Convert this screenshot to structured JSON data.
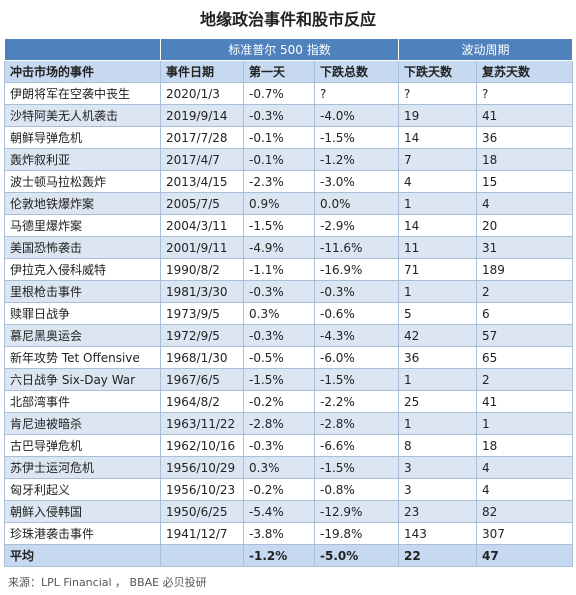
{
  "header": {
    "title": "地缘政治事件和股市反应"
  },
  "table": {
    "groups": [
      "标准普尔 500 指数",
      "波动周期"
    ],
    "columns": [
      "冲击市场的事件",
      "事件日期",
      "第一天",
      "下跌总数",
      "下跌天数",
      "复苏天数"
    ],
    "rows": [
      [
        "伊朗将军在空袭中丧生",
        "2020/1/3",
        "-0.7%",
        "?",
        "?",
        "?"
      ],
      [
        "沙特阿美无人机袭击",
        "2019/9/14",
        "-0.3%",
        "-4.0%",
        "19",
        "41"
      ],
      [
        "朝鲜导弹危机",
        "2017/7/28",
        "-0.1%",
        "-1.5%",
        "14",
        "36"
      ],
      [
        "轰炸叙利亚",
        "2017/4/7",
        "-0.1%",
        "-1.2%",
        "7",
        "18"
      ],
      [
        "波士顿马拉松轰炸",
        "2013/4/15",
        "-2.3%",
        "-3.0%",
        "4",
        "15"
      ],
      [
        "伦敦地铁爆炸案",
        "2005/7/5",
        "0.9%",
        "0.0%",
        "1",
        "4"
      ],
      [
        "马德里爆炸案",
        "2004/3/11",
        "-1.5%",
        "-2.9%",
        "14",
        "20"
      ],
      [
        "美国恐怖袭击",
        "2001/9/11",
        "-4.9%",
        "-11.6%",
        "11",
        "31"
      ],
      [
        "伊拉克入侵科威特",
        "1990/8/2",
        "-1.1%",
        "-16.9%",
        "71",
        "189"
      ],
      [
        "里根枪击事件",
        "1981/3/30",
        "-0.3%",
        "-0.3%",
        "1",
        "2"
      ],
      [
        "赎罪日战争",
        "1973/9/5",
        "0.3%",
        "-0.6%",
        "5",
        "6"
      ],
      [
        "慕尼黑奥运会",
        "1972/9/5",
        "-0.3%",
        "-4.3%",
        "42",
        "57"
      ],
      [
        "新年攻势 Tet Offensive",
        "1968/1/30",
        "-0.5%",
        "-6.0%",
        "36",
        "65"
      ],
      [
        "六日战争 Six-Day War",
        "1967/6/5",
        "-1.5%",
        "-1.5%",
        "1",
        "2"
      ],
      [
        "北部湾事件",
        "1964/8/2",
        "-0.2%",
        "-2.2%",
        "25",
        "41"
      ],
      [
        "肯尼迪被暗杀",
        "1963/11/22",
        "-2.8%",
        "-2.8%",
        "1",
        "1"
      ],
      [
        "古巴导弹危机",
        "1962/10/16",
        "-0.3%",
        "-6.6%",
        "8",
        "18"
      ],
      [
        "苏伊士运河危机",
        "1956/10/29",
        "0.3%",
        "-1.5%",
        "3",
        "4"
      ],
      [
        "匈牙利起义",
        "1956/10/23",
        "-0.2%",
        "-0.8%",
        "3",
        "4"
      ],
      [
        "朝鲜入侵韩国",
        "1950/6/25",
        "-5.4%",
        "-12.9%",
        "23",
        "82"
      ],
      [
        "珍珠港袭击事件",
        "1941/12/7",
        "-3.8%",
        "-19.8%",
        "143",
        "307"
      ]
    ],
    "average": {
      "label": "平均",
      "values": [
        "-1.2%",
        "-5.0%",
        "22",
        "47"
      ]
    }
  },
  "footer": {
    "source": "来源：LPL Financial ， BBAE 必贝投研"
  }
}
